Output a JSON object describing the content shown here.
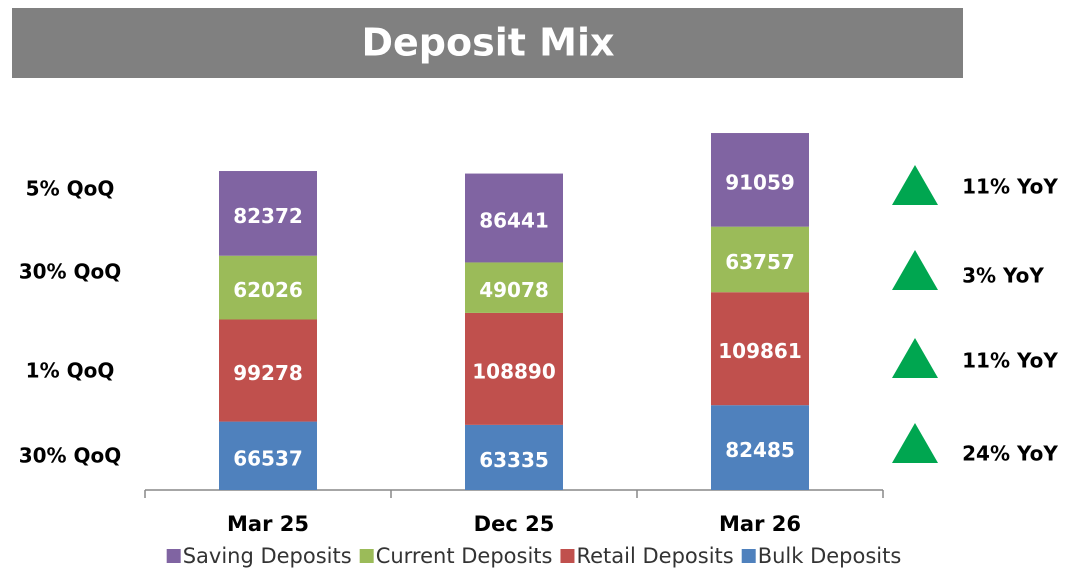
{
  "chart_data": {
    "type": "stacked_bar",
    "title": "Deposit Mix",
    "categories": [
      "Mar 25",
      "Dec 25",
      "Mar 26"
    ],
    "series": [
      {
        "name": "Saving Deposits",
        "color": "#8064a2",
        "values": [
          82372,
          86441,
          91059
        ],
        "qoq_label": "5% QoQ",
        "yoy_label": "11% YoY"
      },
      {
        "name": "Current Deposits",
        "color": "#9bbb59",
        "values": [
          62026,
          49078,
          63757
        ],
        "qoq_label": "30% QoQ",
        "yoy_label": "3% YoY"
      },
      {
        "name": "Retail Deposits",
        "color": "#c0504d",
        "values": [
          99278,
          108890,
          109861
        ],
        "qoq_label": "1% QoQ",
        "yoy_label": "11% YoY"
      },
      {
        "name": "Bulk Deposits",
        "color": "#4f81bd",
        "values": [
          66537,
          63335,
          82485
        ],
        "qoq_label": "30% QoQ",
        "yoy_label": "24% YoY"
      }
    ],
    "ylim": [
      0,
      400000
    ],
    "legend": "bottom",
    "marker_color": "#00a650"
  }
}
